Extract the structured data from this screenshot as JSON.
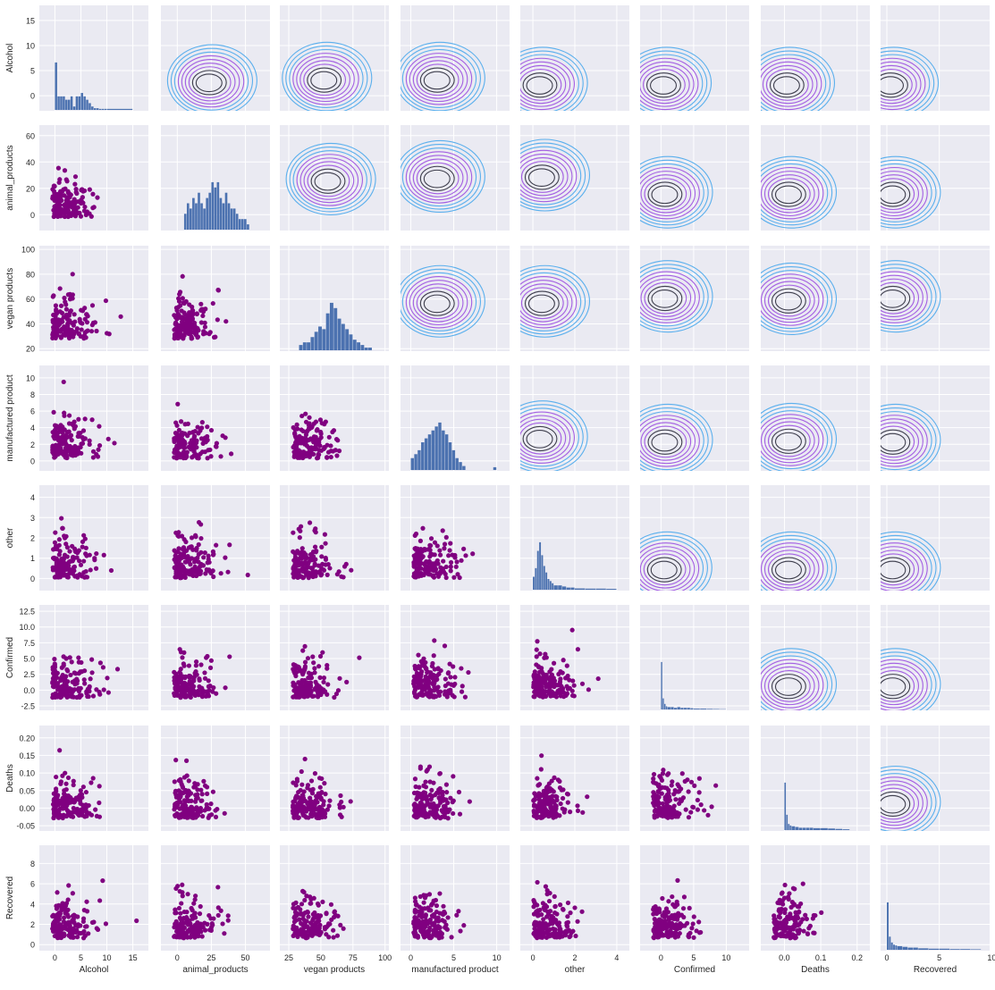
{
  "chart_data": {
    "type": "pairplot",
    "variables": [
      "Alcohol",
      "animal_products",
      "vegan products",
      "manufactured product",
      "other",
      "Confirmed",
      "Deaths",
      "Recovered"
    ],
    "ylabels": [
      "Alcohol",
      "animal_products",
      "vegan products",
      "manufactured product",
      "other",
      "Confirmed",
      "Deaths",
      "Recovered"
    ],
    "ranges": [
      [
        -3,
        18
      ],
      [
        -12,
        68
      ],
      [
        18,
        103
      ],
      [
        -1.2,
        11.5
      ],
      [
        -0.6,
        4.6
      ],
      [
        -3.2,
        13.5
      ],
      [
        -0.065,
        0.235
      ],
      [
        -0.6,
        9.8
      ]
    ],
    "xticks": [
      {
        "values": [
          0,
          5,
          10,
          15
        ],
        "labels": [
          "0",
          "5",
          "10",
          "15"
        ]
      },
      {
        "values": [
          0,
          25,
          50
        ],
        "labels": [
          "0",
          "25",
          "50"
        ]
      },
      {
        "values": [
          25,
          50,
          75,
          100
        ],
        "labels": [
          "25",
          "50",
          "75",
          "100"
        ]
      },
      {
        "values": [
          0,
          5,
          10
        ],
        "labels": [
          "0",
          "5",
          "10"
        ]
      },
      {
        "values": [
          0,
          2,
          4
        ],
        "labels": [
          "0",
          "2",
          "4"
        ]
      },
      {
        "values": [
          0,
          5,
          10
        ],
        "labels": [
          "0",
          "5",
          "10"
        ]
      },
      {
        "values": [
          0.0,
          0.1,
          0.2
        ],
        "labels": [
          "0.0",
          "0.1",
          "0.2"
        ]
      },
      {
        "values": [
          0,
          5,
          10
        ],
        "labels": [
          "0",
          "5",
          "10"
        ]
      }
    ],
    "yticks": [
      {
        "values": [
          0,
          5,
          10,
          15
        ],
        "labels": [
          "0",
          "5",
          "10",
          "15"
        ]
      },
      {
        "values": [
          0,
          20,
          40,
          60
        ],
        "labels": [
          "0",
          "20",
          "40",
          "60"
        ]
      },
      {
        "values": [
          20,
          40,
          60,
          80,
          100
        ],
        "labels": [
          "20",
          "40",
          "60",
          "80",
          "100"
        ]
      },
      {
        "values": [
          0,
          2,
          4,
          6,
          8,
          10
        ],
        "labels": [
          "0",
          "2",
          "4",
          "6",
          "8",
          "10"
        ]
      },
      {
        "values": [
          0,
          1,
          2,
          3,
          4
        ],
        "labels": [
          "0",
          "1",
          "2",
          "3",
          "4"
        ]
      },
      {
        "values": [
          -2.5,
          0.0,
          2.5,
          5.0,
          7.5,
          10.0,
          12.5
        ],
        "labels": [
          "-2.5",
          "0.0",
          "2.5",
          "5.0",
          "7.5",
          "10.0",
          "12.5"
        ]
      },
      {
        "values": [
          -0.05,
          0.0,
          0.05,
          0.1,
          0.15,
          0.2
        ],
        "labels": [
          "-0.05",
          "0.00",
          "0.05",
          "0.10",
          "0.15",
          "0.20"
        ]
      },
      {
        "values": [
          0,
          2,
          4,
          6,
          8
        ],
        "labels": [
          "0",
          "2",
          "4",
          "6",
          "8"
        ]
      }
    ],
    "lower": "scatter",
    "diagonal": "histogram",
    "upper": "kde",
    "grid": true,
    "colors": {
      "background": "#eaeaf2",
      "grid": "#ffffff",
      "scatter": "#800080",
      "hist": "#4c72b0",
      "kde_outer": "#4aa8ec",
      "kde_mid": "#9b4fe0",
      "kde_inner": "#2a2a3a"
    },
    "histograms": [
      {
        "edges": [
          0,
          0.5,
          1,
          1.5,
          2,
          2.5,
          3,
          3.5,
          4,
          4.5,
          5,
          5.5,
          6,
          6.5,
          7,
          7.5,
          8,
          8.5,
          9,
          9.5,
          10,
          15,
          15.5
        ],
        "counts": [
          14,
          4,
          4,
          4,
          3,
          3,
          4,
          1,
          4,
          4,
          5,
          4,
          3,
          2,
          1,
          0.5,
          0.5,
          0.3,
          0.3,
          0.3,
          0.3,
          0,
          0.3
        ]
      },
      {
        "edges": [
          5,
          7,
          9,
          11,
          13,
          15,
          17,
          19,
          21,
          23,
          25,
          27,
          29,
          31,
          33,
          35,
          37,
          39,
          41,
          43,
          45,
          47,
          49,
          51,
          53
        ],
        "counts": [
          3,
          5,
          4,
          6,
          5,
          7,
          5,
          4,
          6,
          7,
          9,
          8,
          9,
          6,
          5,
          7,
          5,
          4,
          4,
          3,
          2,
          2,
          2,
          1
        ]
      },
      {
        "edges": [
          33,
          36,
          39,
          42,
          45,
          48,
          51,
          54,
          57,
          60,
          63,
          66,
          69,
          72,
          75,
          78,
          81,
          84,
          87,
          90
        ],
        "counts": [
          2,
          3,
          3,
          5,
          7,
          9,
          8,
          14,
          18,
          16,
          12,
          10,
          8,
          6,
          4,
          3,
          2,
          1,
          1
        ]
      },
      {
        "edges": [
          0,
          0.4,
          0.8,
          1.2,
          1.6,
          2.0,
          2.4,
          2.8,
          3.2,
          3.6,
          4.0,
          4.4,
          4.8,
          5.2,
          5.6,
          6.0,
          6.4,
          9.6,
          10.0
        ],
        "counts": [
          3,
          4,
          5,
          7,
          8,
          9,
          10,
          11,
          12,
          10,
          9,
          7,
          5,
          3,
          2,
          1,
          0,
          0.7
        ]
      },
      {
        "edges": [
          0,
          0.1,
          0.2,
          0.3,
          0.4,
          0.5,
          0.6,
          0.7,
          0.8,
          0.9,
          1.0,
          1.2,
          1.4,
          1.6,
          1.8,
          2.0,
          2.5,
          3.0,
          3.5,
          4.0
        ],
        "counts": [
          6,
          10,
          18,
          22,
          16,
          11,
          8,
          5,
          4,
          3,
          2,
          2,
          1.5,
          1,
          1,
          0.6,
          0.5,
          0.5,
          0.4
        ]
      },
      {
        "edges": [
          0,
          0.25,
          0.5,
          0.75,
          1.0,
          1.5,
          2.0,
          2.5,
          3.0,
          3.5,
          4.0,
          4.5,
          5.0,
          6.0,
          7.0,
          8.0,
          9.0,
          10.0
        ],
        "counts": [
          60,
          14,
          7,
          4,
          3,
          3,
          2,
          3,
          2,
          2,
          2,
          1.5,
          1,
          1,
          0.7,
          0.5,
          0.3
        ]
      },
      {
        "edges": [
          0,
          0.005,
          0.01,
          0.015,
          0.02,
          0.03,
          0.04,
          0.05,
          0.06,
          0.07,
          0.08,
          0.1,
          0.12,
          0.14,
          0.16,
          0.18
        ],
        "counts": [
          62,
          20,
          8,
          6,
          5,
          4,
          3,
          3,
          3,
          3,
          2.5,
          2.5,
          2,
          1.5,
          1
        ]
      },
      {
        "edges": [
          0,
          0.2,
          0.4,
          0.6,
          0.8,
          1.0,
          1.5,
          2.0,
          2.5,
          3.0,
          4.0,
          5.0,
          6.0,
          7.0,
          8.0,
          9.0
        ],
        "counts": [
          65,
          18,
          10,
          7,
          6,
          5,
          4,
          3,
          3,
          2,
          1.5,
          1.5,
          1,
          1,
          0.7
        ]
      }
    ],
    "kde_centers": [
      [
        null,
        [
          23,
          2.5
        ],
        [
          52,
          3
        ],
        [
          3,
          3
        ],
        [
          0.3,
          2
        ],
        [
          0.3,
          2
        ],
        [
          0.005,
          2
        ],
        [
          0.3,
          2
        ]
      ],
      [
        null,
        null,
        [
          55,
          25
        ],
        [
          3,
          27
        ],
        [
          0.4,
          28
        ],
        [
          0.5,
          15
        ],
        [
          0.01,
          15
        ],
        [
          0.5,
          15
        ]
      ],
      [
        null,
        null,
        null,
        [
          3,
          56
        ],
        [
          0.4,
          56
        ],
        [
          0.5,
          60
        ],
        [
          0.01,
          58
        ],
        [
          0.5,
          60
        ]
      ],
      [
        null,
        null,
        null,
        null,
        [
          0.3,
          2.6
        ],
        [
          0.5,
          2.2
        ],
        [
          0.01,
          2.3
        ],
        [
          0.5,
          2.2
        ]
      ],
      [
        null,
        null,
        null,
        null,
        null,
        [
          0.4,
          0.4
        ],
        [
          0.01,
          0.4
        ],
        [
          0.5,
          0.4
        ]
      ],
      [
        null,
        null,
        null,
        null,
        null,
        null,
        [
          0.01,
          0.5
        ],
        [
          0.5,
          0.5
        ]
      ],
      [
        null,
        null,
        null,
        null,
        null,
        null,
        null,
        [
          0.5,
          0.01
        ]
      ],
      [
        null,
        null,
        null,
        null,
        null,
        null,
        null,
        null
      ]
    ]
  }
}
